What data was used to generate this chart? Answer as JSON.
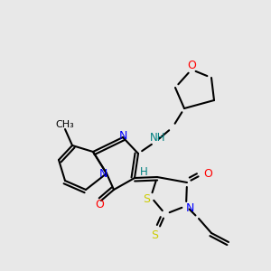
{
  "bg": "#e8e8e8",
  "figsize": [
    3.0,
    3.0
  ],
  "dpi": 100,
  "lw": 1.5,
  "colors": {
    "bond": "black",
    "N": "blue",
    "O": "red",
    "S": "#cccc00",
    "NH": "#008080",
    "H": "#008080"
  }
}
